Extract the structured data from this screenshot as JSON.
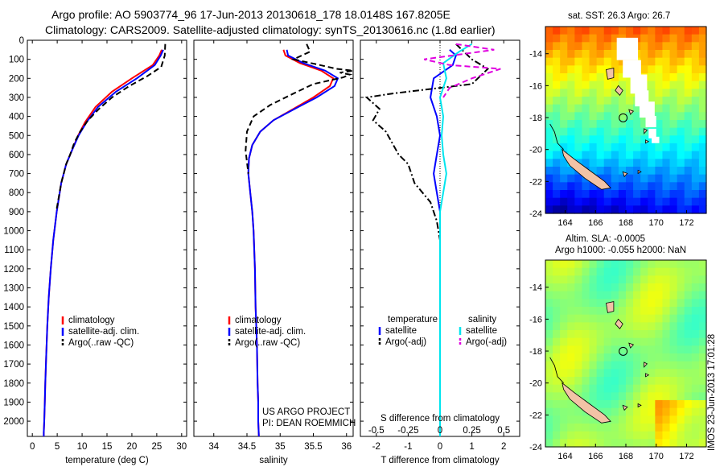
{
  "header": {
    "line1": "Argo profile: AO 5903774_96 17-Jun-2013 20130618_178 18.0148S 167.8205E",
    "line2": "Climatology: CARS2009. Satellite-adjusted climatology: synTS_20130616.nc (1.8d earlier)"
  },
  "map_top": {
    "title": "sat. SST: 26.3 Argo: 26.7"
  },
  "map_bottom": {
    "title_line1": "Altim. SLA: -0.0005",
    "title_line2": "Argo h1000: -0.055 h2000: NaN"
  },
  "credit": "IMOS 23-Jun-2013 17:01:28",
  "project": {
    "line1": "US ARGO PROJECT",
    "line2": "PI: DEAN ROEMMICH"
  },
  "colors": {
    "climatology": "#ff0000",
    "satellite": "#0000ff",
    "argo": "#000000",
    "sat_salinity": "#00e5ee",
    "argo_salinity": "#e000e0",
    "land": "#f2c3a6"
  },
  "chart_data": [
    {
      "type": "line",
      "name": "temperature-profile",
      "xlabel": "temperature (deg C)",
      "ylabel": "",
      "xlim": [
        -1,
        31
      ],
      "ylim": [
        2080,
        0
      ],
      "xticks": [
        0,
        5,
        10,
        15,
        20,
        25,
        30
      ],
      "yticks": [
        0,
        100,
        200,
        300,
        400,
        500,
        600,
        700,
        800,
        900,
        1000,
        1100,
        1200,
        1300,
        1400,
        1500,
        1600,
        1700,
        1800,
        1900,
        2000
      ],
      "legend": [
        "climatology",
        "satellite-adj. clim.",
        "Argo(..raw -QC)"
      ],
      "series": [
        {
          "name": "climatology",
          "color": "#ff0000",
          "style": "solid",
          "x": [
            26.0,
            25.5,
            24.2,
            20.0,
            16.0,
            12.7,
            10.6,
            9.2,
            8.1,
            6.8,
            5.8,
            4.9,
            4.2,
            3.7,
            3.3,
            3.0,
            2.8,
            2.6,
            2.5,
            2.4,
            2.3,
            2.3
          ],
          "y": [
            50,
            80,
            130,
            200,
            270,
            350,
            430,
            500,
            570,
            650,
            750,
            900,
            1050,
            1200,
            1350,
            1500,
            1650,
            1800,
            1900,
            2000,
            2060,
            2080
          ]
        },
        {
          "name": "satellite",
          "color": "#0000ff",
          "style": "solid",
          "x": [
            26.3,
            25.8,
            24.6,
            21.0,
            16.8,
            13.2,
            10.9,
            9.3,
            8.1,
            6.8,
            5.8,
            4.9,
            4.2,
            3.7,
            3.3,
            3.0,
            2.8,
            2.6,
            2.5,
            2.4,
            2.3,
            2.3
          ],
          "y": [
            50,
            80,
            130,
            200,
            270,
            350,
            430,
            500,
            570,
            650,
            750,
            900,
            1050,
            1200,
            1350,
            1500,
            1650,
            1800,
            1900,
            2000,
            2060,
            2080
          ]
        },
        {
          "name": "Argo",
          "color": "#000000",
          "style": "dash",
          "x": [
            26.7,
            26.6,
            25.9,
            23.0,
            19.5,
            16.0,
            13.4,
            11.2,
            9.6,
            8.4,
            7.6,
            6.8,
            5.8,
            4.8
          ],
          "y": [
            20,
            80,
            140,
            190,
            240,
            300,
            360,
            420,
            480,
            540,
            600,
            650,
            750,
            900
          ]
        }
      ]
    },
    {
      "type": "line",
      "name": "salinity-profile",
      "xlabel": "salinity",
      "ylabel": "",
      "xlim": [
        33.7,
        36.1
      ],
      "ylim": [
        2080,
        0
      ],
      "xticks": [
        34,
        34.5,
        35,
        35.5,
        36
      ],
      "legend": [
        "climatology",
        "satellite-adj. clim.",
        "Argo(..raw -QC)"
      ],
      "series": [
        {
          "name": "climatology",
          "color": "#ff0000",
          "style": "solid",
          "x": [
            35.05,
            35.08,
            35.3,
            35.62,
            35.8,
            35.75,
            35.5,
            35.2,
            34.9,
            34.7,
            34.58,
            34.53,
            34.52,
            34.55,
            34.58,
            34.6,
            34.62,
            34.63,
            34.65,
            34.66,
            34.67,
            34.67,
            34.68
          ],
          "y": [
            50,
            80,
            120,
            160,
            200,
            240,
            300,
            360,
            420,
            480,
            550,
            620,
            700,
            800,
            900,
            1000,
            1200,
            1400,
            1600,
            1800,
            1900,
            2000,
            2080
          ]
        },
        {
          "name": "satellite",
          "color": "#0000ff",
          "style": "solid",
          "x": [
            35.1,
            35.12,
            35.35,
            35.68,
            35.87,
            35.82,
            35.55,
            35.22,
            34.9,
            34.7,
            34.58,
            34.53,
            34.52,
            34.55,
            34.58,
            34.6,
            34.62,
            34.63,
            34.65,
            34.66,
            34.67,
            34.67,
            34.68
          ],
          "y": [
            50,
            80,
            120,
            160,
            200,
            240,
            300,
            360,
            420,
            480,
            550,
            620,
            700,
            800,
            900,
            1000,
            1200,
            1400,
            1600,
            1800,
            1900,
            2000,
            2080
          ]
        },
        {
          "name": "Argo",
          "color": "#000000",
          "style": "dash",
          "x": [
            35.4,
            35.45,
            35.2,
            35.6,
            35.85,
            36.1,
            35.9,
            36.05,
            35.95,
            35.5,
            35.2,
            34.85,
            34.6,
            34.5,
            34.48,
            34.52
          ],
          "y": [
            20,
            60,
            100,
            130,
            150,
            160,
            170,
            180,
            195,
            230,
            280,
            340,
            400,
            480,
            580,
            700
          ]
        }
      ]
    },
    {
      "type": "line",
      "name": "difference-profile",
      "xlabel": "T difference from climatology",
      "xlabel_top": "S difference from climatology",
      "xlim": [
        -2.5,
        2.5
      ],
      "ylim": [
        2080,
        0
      ],
      "xticks": [
        -2,
        -1,
        0,
        1,
        2
      ],
      "xticks_s": [
        "-0.5",
        "-0.25",
        "0",
        "0.25",
        "0.5"
      ],
      "legend_titles": [
        "temperature",
        "salinity"
      ],
      "legend": [
        "satellite",
        "Argo(-adj)",
        "satellite",
        "Argo(-adj)"
      ],
      "series": [
        {
          "name": "T satellite",
          "color": "#0000ff",
          "style": "solid",
          "x": [
            0.3,
            0.5,
            0.4,
            -0.2,
            -0.3,
            -0.1,
            0.0,
            -0.1,
            -0.2,
            -0.1,
            0.0,
            0.0,
            0.0,
            0.0,
            0.0,
            0.0
          ],
          "y": [
            50,
            80,
            130,
            200,
            300,
            400,
            500,
            600,
            700,
            800,
            900,
            1000,
            1200,
            1500,
            1800,
            2080
          ]
        },
        {
          "name": "T Argo",
          "color": "#000000",
          "style": "dashdot",
          "x": [
            0.5,
            1.0,
            1.5,
            1.0,
            -1.5,
            -2.3,
            -1.9,
            -2.1,
            -1.7,
            -1.5,
            -1.3,
            -1.0,
            -0.8,
            -0.3,
            -0.1,
            0.0
          ],
          "y": [
            20,
            100,
            150,
            230,
            280,
            300,
            360,
            420,
            480,
            540,
            600,
            650,
            750,
            850,
            950,
            1050
          ]
        },
        {
          "name": "S satellite",
          "color": "#00e5ee",
          "style": "solid",
          "x": [
            1.0,
            0.6,
            0.1,
            0.2,
            0.0,
            0.1,
            0.05,
            0.1,
            0.2,
            0.1,
            0.0,
            0.0,
            0.0,
            0.0,
            0.0
          ],
          "y": [
            20,
            60,
            120,
            200,
            300,
            400,
            500,
            600,
            700,
            800,
            900,
            1000,
            1300,
            1700,
            2080
          ]
        },
        {
          "name": "S Argo",
          "color": "#e000e0",
          "style": "dash",
          "x": [
            0.5,
            1.7,
            -0.5,
            0.3,
            1.9,
            1.0,
            0.3,
            0.1
          ],
          "y": [
            20,
            50,
            100,
            130,
            150,
            200,
            250,
            300
          ]
        }
      ]
    }
  ],
  "maps": {
    "xticks": [
      "164",
      "166",
      "168",
      "170",
      "172"
    ],
    "yticks_top": [
      "-14",
      "-16",
      "-18",
      "-20",
      "-22",
      "-24"
    ],
    "yticks_bottom": [
      "-14",
      "-16",
      "-18",
      "-20",
      "-22",
      "-24"
    ],
    "float_lat": -18.0148,
    "float_lon": 167.8205
  }
}
